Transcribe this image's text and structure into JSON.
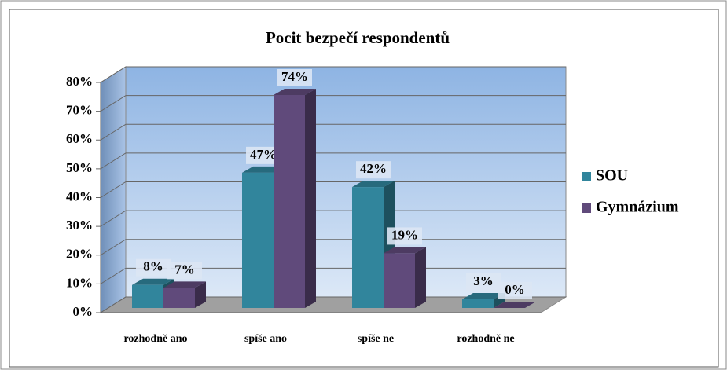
{
  "chart_data": {
    "type": "bar",
    "title": "Pocit bezpečí respondentů",
    "categories": [
      "rozhodně ano",
      "spíše ano",
      "spíše ne",
      "rozhodně ne"
    ],
    "series": [
      {
        "name": "SOU",
        "color": "#31859c",
        "values": [
          8,
          47,
          42,
          3
        ],
        "value_labels": [
          "8%",
          "47%",
          "42%",
          "3%"
        ]
      },
      {
        "name": "Gymnázium",
        "color": "#604a7b",
        "values": [
          7,
          74,
          19,
          0
        ],
        "value_labels": [
          "7%",
          "74%",
          "19%",
          "0%"
        ]
      }
    ],
    "ylim": [
      0,
      80
    ],
    "yticks": [
      {
        "value": 0,
        "label": "0%"
      },
      {
        "value": 10,
        "label": "10%"
      },
      {
        "value": 20,
        "label": "20%"
      },
      {
        "value": 30,
        "label": "30%"
      },
      {
        "value": 40,
        "label": "40%"
      },
      {
        "value": 50,
        "label": "50%"
      },
      {
        "value": 60,
        "label": "60%"
      },
      {
        "value": 70,
        "label": "70%"
      },
      {
        "value": 80,
        "label": "80%"
      }
    ],
    "grid": true,
    "legend": "right"
  }
}
